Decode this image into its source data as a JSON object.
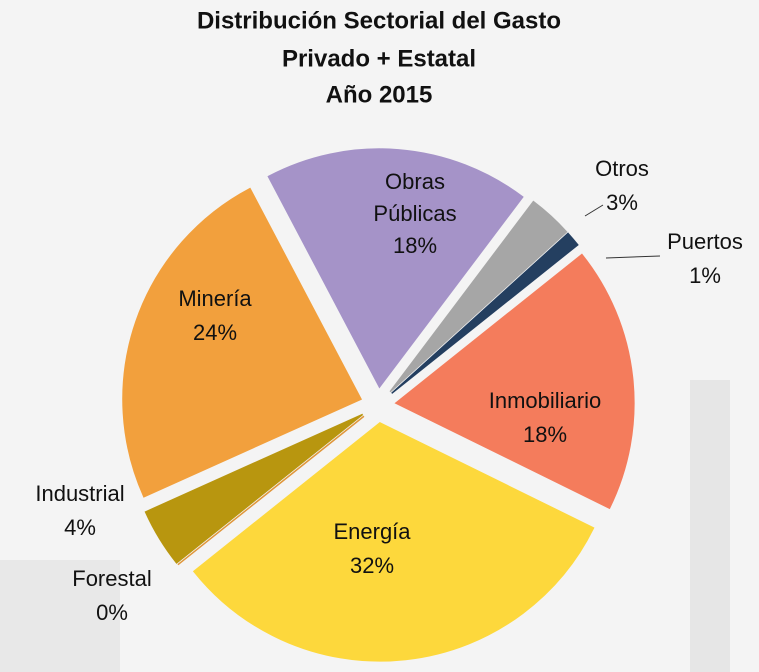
{
  "chart_data": {
    "type": "pie",
    "title": [
      "Distribución Sectorial del Gasto",
      "Privado + Estatal",
      "Año 2015"
    ],
    "categories": [
      "Otros",
      "Puertos",
      "Inmobiliario",
      "Energía",
      "Forestal",
      "Industrial",
      "Minería",
      "Obras Públicas"
    ],
    "values": [
      3,
      1,
      18,
      32,
      0,
      4,
      24,
      18
    ],
    "value_labels": [
      "3%",
      "1%",
      "18%",
      "32%",
      "0%",
      "4%",
      "24%",
      "18%"
    ],
    "colors": [
      "#a6a6a6",
      "#243f60",
      "#f47c5c",
      "#fdd83c",
      "#e0963a",
      "#b8960f",
      "#f2a03d",
      "#a593c8"
    ]
  }
}
